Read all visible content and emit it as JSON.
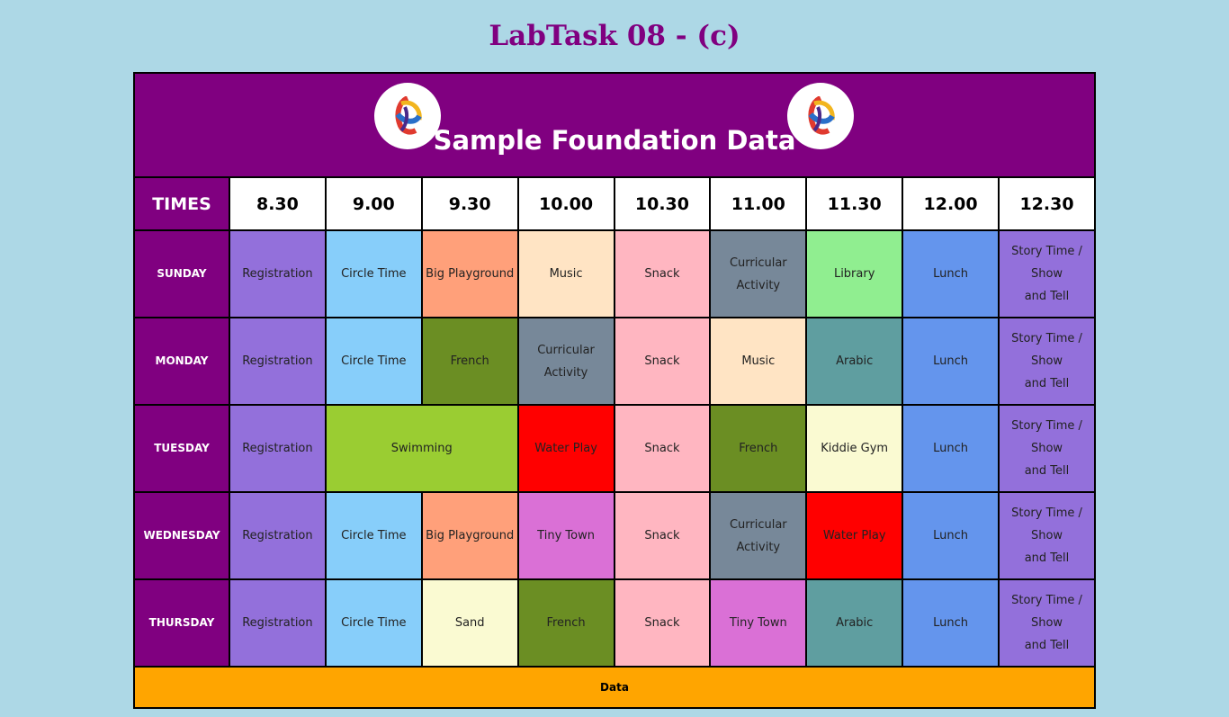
{
  "page": {
    "title": "LabTask 08 - (c)"
  },
  "banner": {
    "title": "Sample Foundation Data",
    "logo_icon": "globe-logo-icon"
  },
  "header": {
    "times_label": "TIMES",
    "times": [
      "8.30",
      "9.00",
      "9.30",
      "10.00",
      "10.30",
      "11.00",
      "11.30",
      "12.00",
      "12.30"
    ]
  },
  "days": [
    {
      "name": "SUNDAY",
      "cells": [
        {
          "text": "Registration",
          "cls": "c-reg"
        },
        {
          "text": "Circle Time",
          "cls": "c-circle"
        },
        {
          "text": "Big Playground",
          "cls": "c-bigpg"
        },
        {
          "text": "Music",
          "cls": "c-music"
        },
        {
          "text": "Snack",
          "cls": "c-snack"
        },
        {
          "text": "Curricular\nActivity",
          "cls": "c-curr"
        },
        {
          "text": "Library",
          "cls": "c-lib"
        },
        {
          "text": "Lunch",
          "cls": "c-lunch"
        },
        {
          "text": "Story Time /\nShow\nand Tell",
          "cls": "c-story"
        }
      ]
    },
    {
      "name": "MONDAY",
      "cells": [
        {
          "text": "Registration",
          "cls": "c-reg"
        },
        {
          "text": "Circle Time",
          "cls": "c-circle"
        },
        {
          "text": "French",
          "cls": "c-french"
        },
        {
          "text": "Curricular\nActivity",
          "cls": "c-curr"
        },
        {
          "text": "Snack",
          "cls": "c-snack"
        },
        {
          "text": "Music",
          "cls": "c-music"
        },
        {
          "text": "Arabic",
          "cls": "c-arabic"
        },
        {
          "text": "Lunch",
          "cls": "c-lunch"
        },
        {
          "text": "Story Time /\nShow\nand Tell",
          "cls": "c-story"
        }
      ]
    },
    {
      "name": "TUESDAY",
      "cells": [
        {
          "text": "Registration",
          "cls": "c-reg"
        },
        {
          "text": "Swimming",
          "cls": "c-swim",
          "span": 2
        },
        {
          "text": "Water Play",
          "cls": "c-water"
        },
        {
          "text": "Snack",
          "cls": "c-snack"
        },
        {
          "text": "French",
          "cls": "c-french"
        },
        {
          "text": "Kiddie Gym",
          "cls": "c-gym"
        },
        {
          "text": "Lunch",
          "cls": "c-lunch"
        },
        {
          "text": "Story Time /\nShow\nand Tell",
          "cls": "c-story"
        }
      ]
    },
    {
      "name": "WEDNESDAY",
      "cells": [
        {
          "text": "Registration",
          "cls": "c-reg"
        },
        {
          "text": "Circle Time",
          "cls": "c-circle"
        },
        {
          "text": "Big Playground",
          "cls": "c-bigpg"
        },
        {
          "text": "Tiny Town",
          "cls": "c-tiny"
        },
        {
          "text": "Snack",
          "cls": "c-snack"
        },
        {
          "text": "Curricular\nActivity",
          "cls": "c-curr"
        },
        {
          "text": "Water Play",
          "cls": "c-water"
        },
        {
          "text": "Lunch",
          "cls": "c-lunch"
        },
        {
          "text": "Story Time /\nShow\nand Tell",
          "cls": "c-story"
        }
      ]
    },
    {
      "name": "THURSDAY",
      "cells": [
        {
          "text": "Registration",
          "cls": "c-reg"
        },
        {
          "text": "Circle Time",
          "cls": "c-circle"
        },
        {
          "text": "Sand",
          "cls": "c-sand"
        },
        {
          "text": "French",
          "cls": "c-french"
        },
        {
          "text": "Snack",
          "cls": "c-snack"
        },
        {
          "text": "Tiny Town",
          "cls": "c-tiny"
        },
        {
          "text": "Arabic",
          "cls": "c-arabic"
        },
        {
          "text": "Lunch",
          "cls": "c-lunch"
        },
        {
          "text": "Story Time /\nShow\nand Tell",
          "cls": "c-story"
        }
      ]
    }
  ],
  "footer": {
    "text": "Data"
  },
  "colors": {
    "background": "#add8e6",
    "accent": "#800080",
    "footer": "#ffa500"
  }
}
